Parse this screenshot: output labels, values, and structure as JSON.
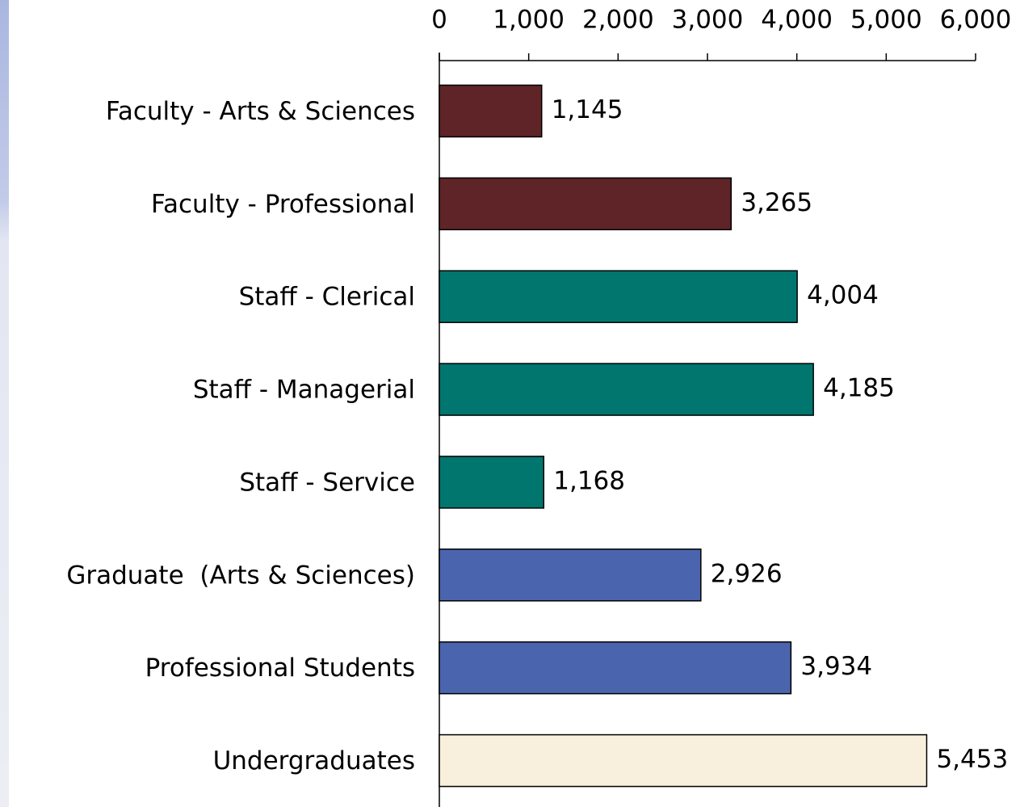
{
  "chart_data": {
    "type": "bar",
    "orientation": "horizontal",
    "categories": [
      "Faculty - Arts & Sciences",
      "Faculty - Professional",
      "Staff - Clerical",
      "Staff - Managerial",
      "Staff - Service",
      "Graduate  (Arts & Sciences)",
      "Professional Students",
      "Undergraduates"
    ],
    "values": [
      1145,
      3265,
      4004,
      4185,
      1168,
      2926,
      3934,
      5453
    ],
    "value_labels": [
      "1,145",
      "3,265",
      "4,004",
      "4,185",
      "1,168",
      "2,926",
      "3,934",
      "5,453"
    ],
    "colors": [
      "#5f2428",
      "#5f2428",
      "#00766e",
      "#00766e",
      "#00766e",
      "#4a65ae",
      "#4a65ae",
      "#f8efdc"
    ],
    "xlim": [
      0,
      6000
    ],
    "xticks": [
      0,
      {
        "value": 1000,
        "label": "1,000"
      },
      {
        "value": 2000,
        "label": "2,000"
      },
      {
        "value": 3000,
        "label": "3,000"
      },
      {
        "value": 4000,
        "label": "4,000"
      },
      {
        "value": 5000,
        "label": "5,000"
      },
      {
        "value": 6000,
        "label": "6,000"
      }
    ]
  }
}
